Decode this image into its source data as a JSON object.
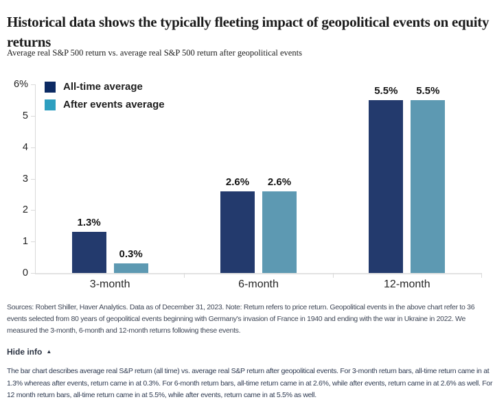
{
  "page": {
    "title": "Historical data shows the typically fleeting impact of geopolitical events on equity returns",
    "subtitle": "Average real S&P 500 return vs. average real S&P 500 return after geopolitical events"
  },
  "chart_data": {
    "type": "bar",
    "title": "Average real S&P 500 return vs. average real S&P 500 return after geopolitical events",
    "categories": [
      "3-month",
      "6-month",
      "12-month"
    ],
    "series": [
      {
        "name": "All-time average",
        "values": [
          1.3,
          2.6,
          5.5
        ],
        "labels": [
          "1.3%",
          "2.6%",
          "5.5%"
        ],
        "bar_color": "#233a6d",
        "legend_color": "#0c2a63"
      },
      {
        "name": "After events average",
        "values": [
          0.3,
          2.6,
          5.5
        ],
        "labels": [
          "0.3%",
          "2.6%",
          "5.5%"
        ],
        "bar_color": "#5d99b2",
        "legend_color": "#2e9fc0"
      }
    ],
    "xlabel": "",
    "ylabel": "",
    "ylim": [
      0,
      6
    ],
    "y_ticks": [
      "6%",
      "5",
      "4",
      "3",
      "2",
      "1",
      "0"
    ],
    "y_tick_values": [
      6,
      5,
      4,
      3,
      2,
      1,
      0
    ],
    "grid": false,
    "legend_position": "top-left",
    "axis_color": "#d9d9d9"
  },
  "footer": {
    "sources": "Sources: Robert Shiller, Haver Analytics. Data as of December 31, 2023. Note: Return refers to price return. Geopolitical events in the above chart refer to 36 events selected from 80 years of geopolitical events beginning with Germany's invasion of France in 1940 and ending with the war in Ukraine in 2022. We measured the 3-month, 6-month and 12-month returns following these events.",
    "hide_info_label": "Hide info",
    "hide_info_icon": "▲",
    "description": "The bar chart describes average real S&P return (all time) vs. average real S&P return after geopolitical events. For 3-month return bars, all-time return came in at 1.3% whereas after events, return came in at 0.3%. For 6-month return bars, all-time return came in at 2.6%, while after events, return came in at 2.6% as well. For 12 month return bars, all-time return came in at 5.5%, while after events, return came in at 5.5% as well."
  }
}
